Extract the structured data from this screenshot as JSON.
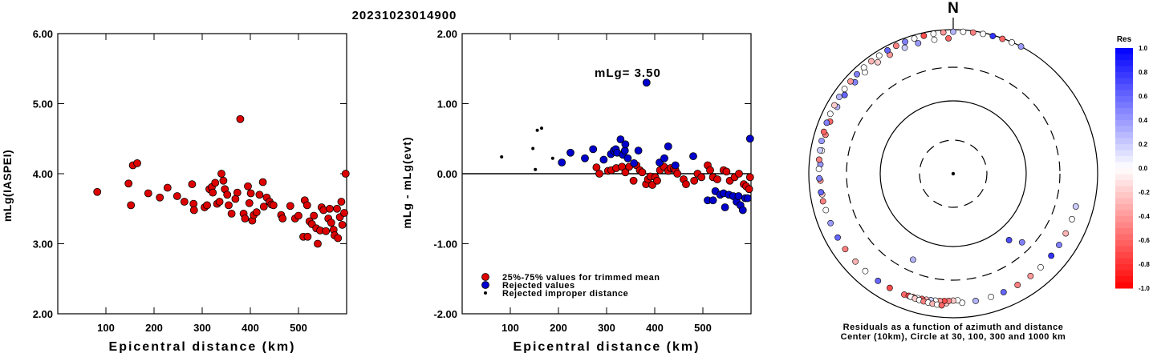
{
  "title": "20231023014900",
  "colors": {
    "accepted": "#dd0000",
    "rejected": "#0000cc",
    "improper": "#000000",
    "axis": "#000000"
  },
  "chart_data": [
    {
      "type": "scatter",
      "ylabel": "mLg(IASPEI)",
      "xlabel": "Epicentral distance (km)",
      "xlim": [
        0,
        600
      ],
      "ylim": [
        2.0,
        6.0
      ],
      "xticks": [
        "100",
        "200",
        "300",
        "400",
        "500"
      ],
      "yticks": [
        "2.00",
        "3.00",
        "4.00",
        "5.00",
        "6.00"
      ],
      "series": [
        {
          "points": [
            [
              82,
              3.74
            ],
            [
              147,
              3.86
            ],
            [
              152,
              3.55
            ],
            [
              156,
              4.12
            ],
            [
              165,
              4.15
            ],
            [
              188,
              3.72
            ],
            [
              212,
              3.66
            ],
            [
              228,
              3.8
            ],
            [
              248,
              3.68
            ],
            [
              263,
              3.6
            ],
            [
              279,
              3.85
            ],
            [
              282,
              3.57
            ],
            [
              283,
              3.48
            ],
            [
              305,
              3.52
            ],
            [
              310,
              3.55
            ],
            [
              315,
              3.78
            ],
            [
              320,
              3.81
            ],
            [
              322,
              3.73
            ],
            [
              327,
              3.87
            ],
            [
              331,
              3.57
            ],
            [
              336,
              3.6
            ],
            [
              340,
              4.0
            ],
            [
              344,
              3.9
            ],
            [
              347,
              3.78
            ],
            [
              352,
              3.7
            ],
            [
              355,
              3.55
            ],
            [
              361,
              3.43
            ],
            [
              369,
              3.64
            ],
            [
              373,
              3.73
            ],
            [
              379,
              4.78
            ],
            [
              386,
              3.43
            ],
            [
              389,
              3.36
            ],
            [
              395,
              3.82
            ],
            [
              398,
              3.58
            ],
            [
              401,
              3.72
            ],
            [
              404,
              3.33
            ],
            [
              407,
              3.41
            ],
            [
              413,
              3.45
            ],
            [
              419,
              3.7
            ],
            [
              426,
              3.88
            ],
            [
              428,
              3.53
            ],
            [
              434,
              3.66
            ],
            [
              440,
              3.6
            ],
            [
              444,
              3.56
            ],
            [
              448,
              3.55
            ],
            [
              464,
              3.41
            ],
            [
              467,
              3.36
            ],
            [
              483,
              3.54
            ],
            [
              493,
              3.36
            ],
            [
              500,
              3.4
            ],
            [
              510,
              3.1
            ],
            [
              513,
              3.62
            ],
            [
              518,
              3.55
            ],
            [
              519,
              3.1
            ],
            [
              523,
              3.32
            ],
            [
              528,
              3.28
            ],
            [
              532,
              3.4
            ],
            [
              537,
              3.22
            ],
            [
              540,
              3.0
            ],
            [
              545,
              3.19
            ],
            [
              548,
              3.52
            ],
            [
              552,
              3.48
            ],
            [
              557,
              3.18
            ],
            [
              562,
              3.36
            ],
            [
              565,
              3.5
            ],
            [
              568,
              3.3
            ],
            [
              573,
              3.2
            ],
            [
              575,
              3.12
            ],
            [
              580,
              3.5
            ],
            [
              582,
              3.08
            ],
            [
              586,
              3.38
            ],
            [
              589,
              3.6
            ],
            [
              591,
              3.27
            ],
            [
              595,
              3.44
            ],
            [
              598,
              4.0
            ]
          ]
        }
      ]
    },
    {
      "type": "scatter",
      "ylabel": "mLg - mLg(evt)",
      "xlabel": "Epicentral distance (km)",
      "xlim": [
        0,
        600
      ],
      "ylim": [
        -2.0,
        2.0
      ],
      "xticks": [
        "100",
        "200",
        "300",
        "400",
        "500"
      ],
      "yticks": [
        "-2.00",
        "-1.00",
        "0.00",
        "1.00",
        "2.00"
      ],
      "annotation": "mLg= 3.50",
      "legend": [
        "25%-75% values for trimmed mean",
        "Rejected values",
        "Rejected improper distance"
      ],
      "series": [
        {
          "name": "25%-75% values for trimmed mean",
          "points": [
            [
              279,
              0.09
            ],
            [
              285,
              0.0
            ],
            [
              303,
              0.04
            ],
            [
              310,
              0.05
            ],
            [
              320,
              0.08
            ],
            [
              332,
              0.1
            ],
            [
              339,
              0.02
            ],
            [
              347,
              0.1
            ],
            [
              356,
              -0.1
            ],
            [
              362,
              0.12
            ],
            [
              369,
              0.05
            ],
            [
              374,
              0.02
            ],
            [
              382,
              -0.15
            ],
            [
              386,
              -0.08
            ],
            [
              391,
              -0.04
            ],
            [
              395,
              -0.16
            ],
            [
              401,
              -0.05
            ],
            [
              405,
              -0.1
            ],
            [
              411,
              0.05
            ],
            [
              419,
              0.1
            ],
            [
              428,
              0.04
            ],
            [
              433,
              0.08
            ],
            [
              440,
              0.07
            ],
            [
              443,
              0.05
            ],
            [
              447,
              0.0
            ],
            [
              460,
              -0.08
            ],
            [
              465,
              -0.15
            ],
            [
              482,
              -0.1
            ],
            [
              489,
              0.0
            ],
            [
              497,
              -0.05
            ],
            [
              510,
              0.12
            ],
            [
              515,
              0.05
            ],
            [
              521,
              -0.05
            ],
            [
              530,
              -0.08
            ],
            [
              543,
              0.05
            ],
            [
              549,
              0.03
            ],
            [
              556,
              -0.1
            ],
            [
              566,
              -0.05
            ],
            [
              575,
              0.0
            ],
            [
              585,
              -0.15
            ],
            [
              590,
              -0.18
            ],
            [
              596,
              -0.22
            ],
            [
              598,
              -0.05
            ]
          ]
        },
        {
          "name": "Rejected values",
          "points": [
            [
              207,
              0.16
            ],
            [
              225,
              0.3
            ],
            [
              255,
              0.22
            ],
            [
              272,
              0.35
            ],
            [
              294,
              0.2
            ],
            [
              309,
              0.28
            ],
            [
              315,
              0.33
            ],
            [
              319,
              0.35
            ],
            [
              322,
              0.3
            ],
            [
              329,
              0.49
            ],
            [
              334,
              0.27
            ],
            [
              338,
              0.33
            ],
            [
              339,
              0.42
            ],
            [
              344,
              0.22
            ],
            [
              357,
              0.15
            ],
            [
              366,
              0.33
            ],
            [
              383,
              1.3
            ],
            [
              410,
              0.16
            ],
            [
              420,
              0.22
            ],
            [
              428,
              0.39
            ],
            [
              443,
              0.12
            ],
            [
              480,
              0.25
            ],
            [
              510,
              -0.38
            ],
            [
              521,
              -0.38
            ],
            [
              526,
              -0.25
            ],
            [
              536,
              -0.3
            ],
            [
              543,
              -0.28
            ],
            [
              546,
              -0.48
            ],
            [
              554,
              -0.3
            ],
            [
              563,
              -0.32
            ],
            [
              570,
              -0.4
            ],
            [
              574,
              -0.32
            ],
            [
              578,
              -0.45
            ],
            [
              583,
              -0.52
            ],
            [
              588,
              -0.35
            ],
            [
              593,
              -0.35
            ],
            [
              598,
              0.5
            ]
          ]
        },
        {
          "name": "Rejected improper distance",
          "points": [
            [
              82,
              0.24
            ],
            [
              147,
              0.36
            ],
            [
              152,
              0.06
            ],
            [
              156,
              0.62
            ],
            [
              165,
              0.65
            ],
            [
              188,
              0.22
            ]
          ]
        }
      ]
    },
    {
      "type": "polar",
      "north_label": "N",
      "caption_line1": "Residuals as a function of azimuth and distance",
      "caption_line2": "Center (10km), Circle at 30, 100, 300 and 1000 km",
      "colorbar_title": "Res",
      "colorbar_ticks": [
        "1.0",
        "0.8",
        "0.6",
        "0.4",
        "0.2",
        "0.0",
        "-0.2",
        "-0.4",
        "-0.6",
        "-0.8",
        "-1.0"
      ],
      "stations": [
        [
          105,
          550,
          0.2
        ],
        [
          111,
          555,
          0.0
        ],
        [
          118,
          560,
          -0.3
        ],
        [
          124,
          565,
          0.5
        ],
        [
          130,
          570,
          0.8
        ],
        [
          137,
          575,
          0.0
        ],
        [
          143,
          580,
          -0.4
        ],
        [
          150,
          585,
          -0.5
        ],
        [
          157,
          590,
          0.6
        ],
        [
          163,
          595,
          0.0
        ],
        [
          170,
          600,
          0.3
        ],
        [
          176,
          605,
          0.0
        ],
        [
          183,
          610,
          -0.2
        ],
        [
          189,
          615,
          -0.4
        ],
        [
          196,
          620,
          0.4
        ],
        [
          202,
          625,
          -0.6
        ],
        [
          209,
          630,
          -0.7
        ],
        [
          215,
          635,
          0.6
        ],
        [
          222,
          640,
          0.0
        ],
        [
          228,
          645,
          -0.3
        ],
        [
          235,
          650,
          -0.5
        ],
        [
          241,
          655,
          0.6
        ],
        [
          248,
          660,
          0.4
        ],
        [
          254,
          665,
          0.0
        ],
        [
          261,
          670,
          -0.2
        ],
        [
          267,
          675,
          -0.4
        ],
        [
          274,
          680,
          0.4
        ],
        [
          280,
          685,
          0.0
        ],
        [
          287,
          690,
          -0.5
        ],
        [
          293,
          695,
          -0.6
        ],
        [
          300,
          700,
          0.3
        ],
        [
          306,
          705,
          0.6
        ],
        [
          313,
          710,
          0.5
        ],
        [
          319,
          715,
          0.0
        ],
        [
          326,
          720,
          -0.2
        ],
        [
          332,
          725,
          -0.4
        ],
        [
          339,
          730,
          0.2
        ],
        [
          345,
          735,
          0.4
        ],
        [
          352,
          740,
          0.0
        ],
        [
          358,
          745,
          -0.6
        ],
        [
          178,
          550,
          0.0
        ],
        [
          180,
          556,
          -0.2
        ],
        [
          182,
          562,
          -0.5
        ],
        [
          184,
          568,
          -0.7
        ],
        [
          186,
          574,
          -0.4
        ],
        [
          188,
          580,
          0.0
        ],
        [
          190,
          586,
          0.2
        ],
        [
          192,
          592,
          -0.3
        ],
        [
          194,
          598,
          -0.6
        ],
        [
          196,
          604,
          0.0
        ],
        [
          198,
          610,
          -0.4
        ],
        [
          200,
          616,
          -0.7
        ],
        [
          199,
          622,
          0.0
        ],
        [
          197,
          628,
          -0.2
        ],
        [
          195,
          634,
          0.0
        ],
        [
          193,
          640,
          -0.5
        ],
        [
          191,
          646,
          0.0
        ],
        [
          189,
          652,
          -0.3
        ],
        [
          187,
          658,
          0.0
        ],
        [
          185,
          664,
          -0.6
        ],
        [
          135,
          200,
          0.5
        ],
        [
          140,
          140,
          0.7
        ],
        [
          205,
          185,
          0.3
        ],
        [
          258,
          680,
          -0.5
        ],
        [
          262,
          690,
          0.6
        ],
        [
          268,
          700,
          0.5
        ],
        [
          272,
          710,
          0.0
        ],
        [
          276,
          720,
          -0.5
        ],
        [
          280,
          730,
          0.2
        ],
        [
          284,
          740,
          0.4
        ],
        [
          288,
          750,
          -0.6
        ],
        [
          292,
          760,
          0.5
        ],
        [
          296,
          770,
          0.0
        ],
        [
          300,
          780,
          -0.2
        ],
        [
          304,
          790,
          0.3
        ],
        [
          308,
          800,
          0.0
        ],
        [
          312,
          810,
          -0.4
        ],
        [
          316,
          820,
          0.5
        ],
        [
          320,
          830,
          0.0
        ],
        [
          324,
          840,
          -0.3
        ],
        [
          328,
          850,
          0.0
        ],
        [
          332,
          860,
          0.6
        ],
        [
          336,
          870,
          -0.5
        ],
        [
          340,
          880,
          0.5
        ],
        [
          344,
          890,
          0.0
        ],
        [
          348,
          900,
          -0.7
        ],
        [
          352,
          910,
          0.0
        ],
        [
          356,
          920,
          -0.4
        ],
        [
          360,
          930,
          0.3
        ],
        [
          364,
          940,
          0.0
        ],
        [
          368,
          950,
          -0.5
        ],
        [
          372,
          960,
          0.0
        ],
        [
          376,
          970,
          0.8
        ],
        [
          380,
          980,
          -0.6
        ],
        [
          384,
          990,
          0.0
        ],
        [
          388,
          1000,
          0.4
        ]
      ]
    }
  ]
}
